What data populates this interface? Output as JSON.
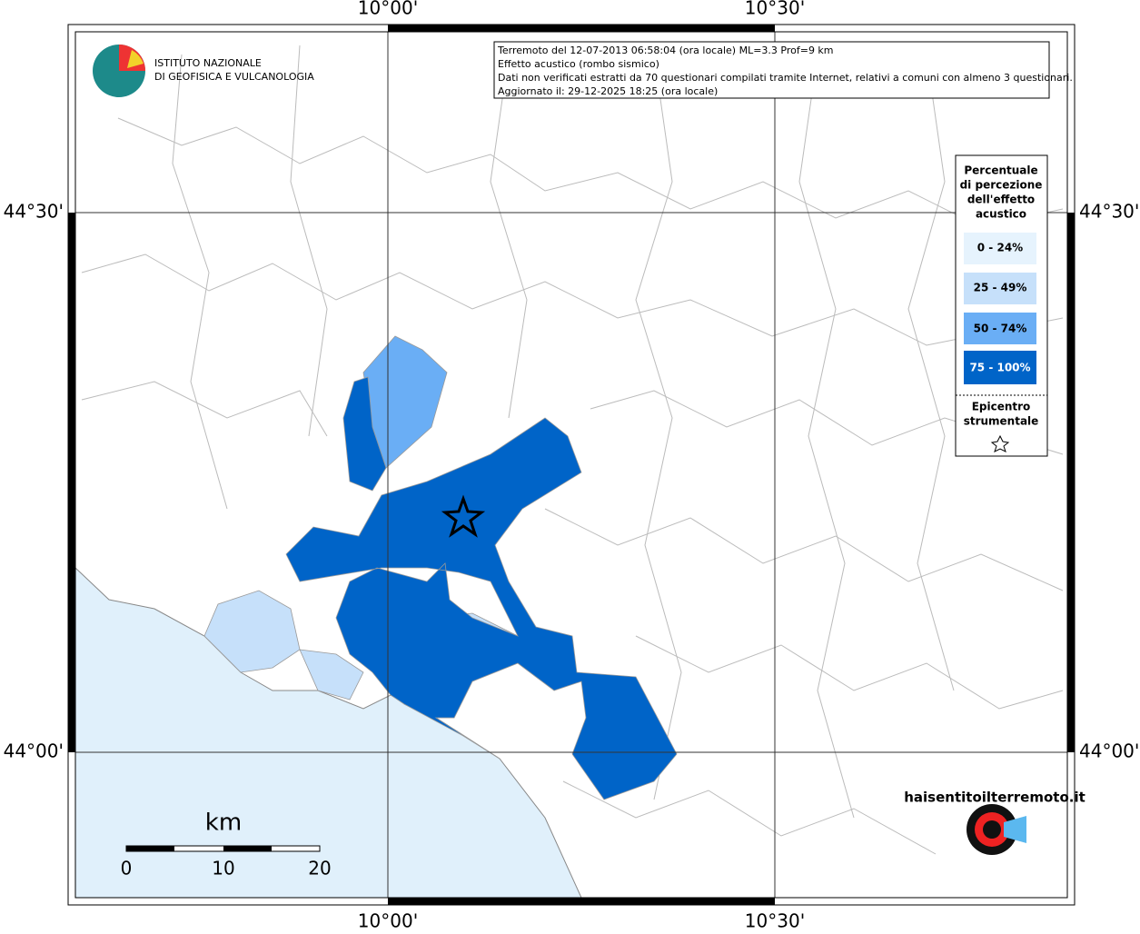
{
  "coordinates": {
    "top": [
      "10°00'",
      "10°30'"
    ],
    "bottom": [
      "10°00'",
      "10°30'"
    ],
    "left": [
      "44°30'",
      "44°00'"
    ],
    "right": [
      "44°30'",
      "44°00'"
    ]
  },
  "info_box": [
    "Terremoto del 12-07-2013 06:58:04 (ora locale) ML=3.3 Prof=9 km",
    "Effetto acustico (rombo sismico)",
    "Dati non verificati estratti da 70 questionari compilati tramite Internet, relativi a comuni con almeno 3 questionari.",
    "Aggiornato il: 29-12-2025 18:25 (ora locale)"
  ],
  "institute": [
    "ISTITUTO NAZIONALE",
    "DI GEOFISICA E VULCANOLOGIA"
  ],
  "legend": {
    "title": [
      "Percentuale",
      "di percezione",
      "dell'effetto",
      "acustico"
    ],
    "items": [
      "0 - 24%",
      "25 - 49%",
      "50 - 74%",
      "75 - 100%"
    ],
    "epicenter": [
      "Epicentro",
      "strumentale"
    ]
  },
  "scale": {
    "unit": "km",
    "ticks": [
      "0",
      "10",
      "20"
    ]
  },
  "site_logo": "haisentitoilterremoto.it"
}
